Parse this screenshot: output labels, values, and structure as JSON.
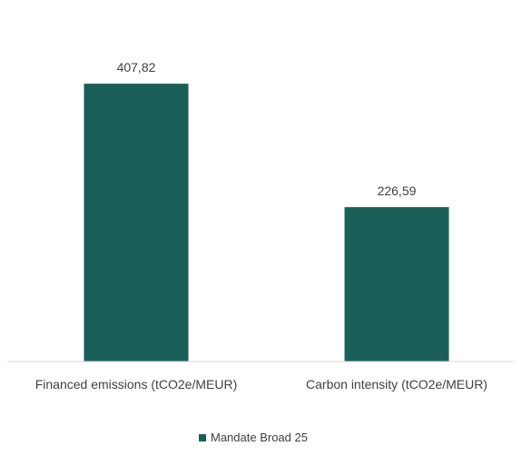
{
  "chart_data": {
    "type": "bar",
    "title": "",
    "xlabel": "",
    "ylabel": "",
    "categories": [
      "Financed emissions (tCO2e/MEUR)",
      "Carbon intensity (tCO2e/MEUR)"
    ],
    "series": [
      {
        "name": "Mandate Broad 25",
        "values": [
          407.82,
          226.59
        ],
        "value_labels": [
          "407,82",
          "226,59"
        ],
        "color": "#1b5e58"
      }
    ],
    "ylim": [
      0,
      500
    ],
    "grid": false,
    "legend": "bottom",
    "baseline_color": "#d9d9d9",
    "text_color": "#404040"
  }
}
